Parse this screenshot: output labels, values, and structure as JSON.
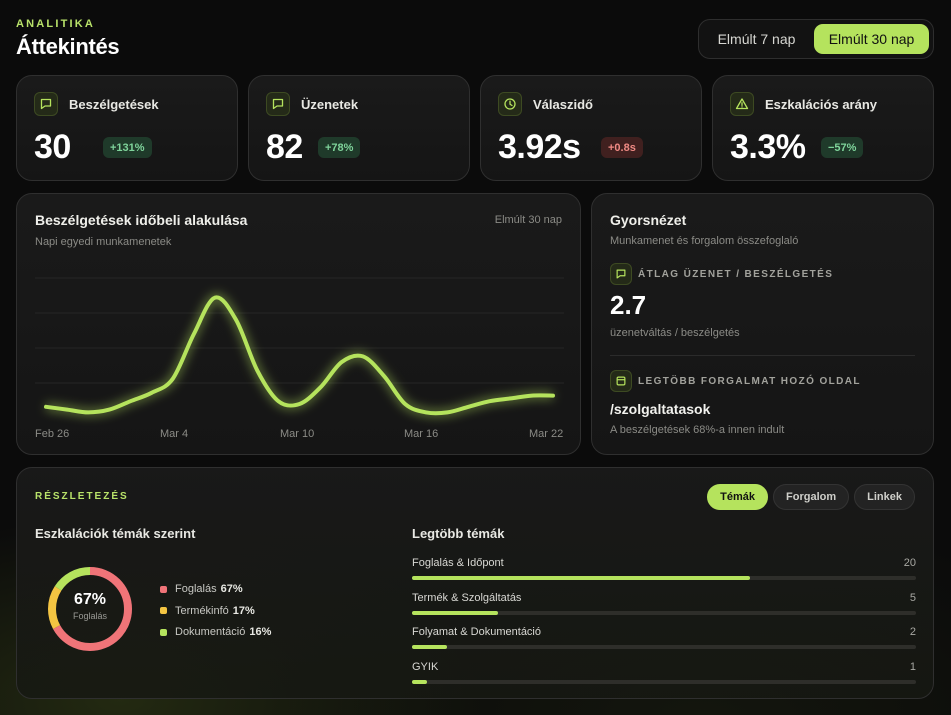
{
  "header": {
    "eyebrow": "ANALITIKA",
    "title": "Áttekintés"
  },
  "range_toggle": {
    "options": [
      "Elmúlt 7 nap",
      "Elmúlt 30 nap"
    ],
    "selected": "Elmúlt 30 nap"
  },
  "stats": [
    {
      "label": "Beszélgetések",
      "value": "30",
      "change": "+131%",
      "trend": "up",
      "icon": "chat-bubble-icon"
    },
    {
      "label": "Üzenetek",
      "value": "82",
      "change": "+78%",
      "trend": "up",
      "icon": "message-icon"
    },
    {
      "label": "Válaszidő",
      "value": "3.92s",
      "change": "+0.8s",
      "trend": "down",
      "icon": "clock-icon"
    },
    {
      "label": "Eszkalációs arány",
      "value": "3.3%",
      "change": "−57%",
      "trend": "good",
      "icon": "warning-icon"
    }
  ],
  "trend_chart": {
    "title": "Beszélgetések időbeli alakulása",
    "subtitle": "Napi egyedi munkamenetek",
    "range": "Elmúlt 30 nap",
    "x_labels": [
      "Feb 26",
      "Mar 4",
      "Mar 10",
      "Mar 16",
      "Mar 22"
    ],
    "color": "#b5e35d"
  },
  "chart_data": {
    "type": "line",
    "title": "Beszélgetések időbeli alakulása",
    "subtitle": "Napi egyedi munkamenetek",
    "x": [
      "Feb 26",
      "Feb 27",
      "Feb 28",
      "Mar 1",
      "Mar 2",
      "Mar 3",
      "Mar 4",
      "Mar 5",
      "Mar 6",
      "Mar 7",
      "Mar 8",
      "Mar 9",
      "Mar 10",
      "Mar 11",
      "Mar 12",
      "Mar 13",
      "Mar 14",
      "Mar 15",
      "Mar 16",
      "Mar 17",
      "Mar 18",
      "Mar 19",
      "Mar 20",
      "Mar 21",
      "Mar 22"
    ],
    "series": [
      {
        "values": [
          0.4,
          0.3,
          0.2,
          0.3,
          0.6,
          0.9,
          1.4,
          3.0,
          4.3,
          3.5,
          1.7,
          0.6,
          0.5,
          1.1,
          2.0,
          2.2,
          1.5,
          0.5,
          0.2,
          0.2,
          0.4,
          0.6,
          0.7,
          0.8,
          0.8
        ]
      }
    ],
    "ylim": [
      0,
      5
    ],
    "grid": true,
    "xlabel": "",
    "ylabel": ""
  },
  "quick_view": {
    "title": "Gyorsnézet",
    "subtitle": "Munkamenet és forgalom összefoglaló",
    "avg_label": "ÁTLAG ÜZENET / BESZÉLGETÉS",
    "avg_value": "2.7",
    "avg_note": "üzenetváltás / beszélgetés",
    "top_page_label": "LEGTÖBB FORGALMAT HOZÓ OLDAL",
    "top_page_path": "/szolgaltatasok",
    "top_page_note": "A beszélgetések 68%-a innen indult"
  },
  "details": {
    "eyebrow": "RÉSZLETEZÉS",
    "tabs": [
      "Témák",
      "Forgalom",
      "Linkek"
    ],
    "active_tab": "Témák",
    "escalation_title": "Eszkalációk témák szerint",
    "donut": {
      "center_value": "67%",
      "center_label": "Foglalás",
      "segments": [
        {
          "label": "Foglalás",
          "value": "67%",
          "fraction": 0.67,
          "color": "#f07478"
        },
        {
          "label": "Termékinfó",
          "value": "17%",
          "fraction": 0.17,
          "color": "#f4c542"
        },
        {
          "label": "Dokumentáció",
          "value": "16%",
          "fraction": 0.16,
          "color": "#b5e35d"
        }
      ]
    },
    "topics_title": "Legtöbb témák",
    "topics": [
      {
        "name": "Foglalás & Időpont",
        "count": "20",
        "fraction": 0.67
      },
      {
        "name": "Termék & Szolgáltatás",
        "count": "5",
        "fraction": 0.17
      },
      {
        "name": "Folyamat & Dokumentáció",
        "count": "2",
        "fraction": 0.07
      },
      {
        "name": "GYIK",
        "count": "1",
        "fraction": 0.03
      }
    ]
  }
}
